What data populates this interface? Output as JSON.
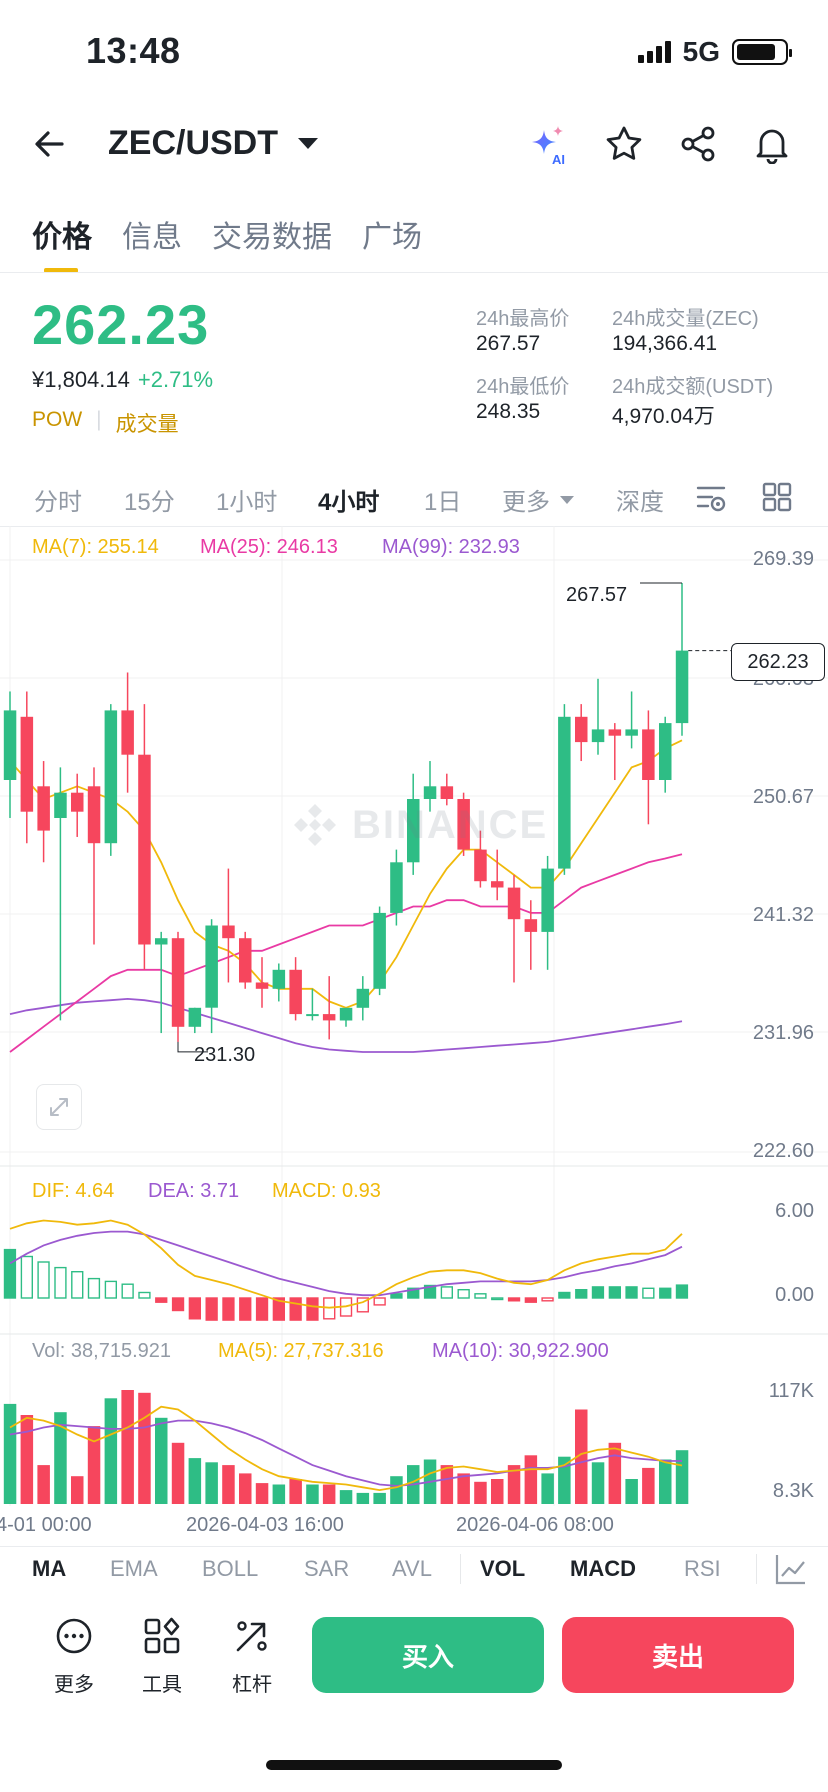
{
  "status_bar": {
    "time": "13:48",
    "network": "5G"
  },
  "header": {
    "pair": "ZEC/USDT"
  },
  "tabs": [
    {
      "label": "价格",
      "active": true
    },
    {
      "label": "信息",
      "active": false
    },
    {
      "label": "交易数据",
      "active": false
    },
    {
      "label": "广场",
      "active": false
    }
  ],
  "ticker": {
    "last_price": "262.23",
    "cny_price": "¥1,804.14",
    "change_pct": "+2.71%",
    "tag_pow": "POW",
    "tag_volume": "成交量",
    "high_label": "24h最高价",
    "high": "267.57",
    "low_label": "24h最低价",
    "low": "248.35",
    "vol_label": "24h成交量(ZEC)",
    "vol": "194,366.41",
    "turnover_label": "24h成交额(USDT)",
    "turnover": "4,970.04万"
  },
  "timeframes": [
    "分时",
    "15分",
    "1小时",
    "4小时",
    "1日",
    "更多",
    "深度"
  ],
  "active_timeframe": "4小时",
  "watermark": "BINANCE",
  "colors": {
    "up": "#2ebd85",
    "down": "#f6465d",
    "ma7": "#f0b90b",
    "ma25": "#e93aa4",
    "ma99": "#9b59d0",
    "accent": "#f0b90b"
  },
  "main_chart": {
    "ma7_label": "MA(7): 255.14",
    "ma25_label": "MA(25): 246.13",
    "ma99_label": "MA(99): 232.93",
    "axis_ticks": [
      "269.39",
      "260.03",
      "250.67",
      "241.32",
      "231.96",
      "222.60"
    ],
    "current_price_tag": "262.23",
    "high_marker": "267.57",
    "low_marker": "231.30"
  },
  "macd": {
    "dif_label": "DIF: 4.64",
    "dea_label": "DEA: 3.71",
    "macd_label": "MACD: 0.93",
    "axis_ticks": [
      "6.00",
      "0.00"
    ]
  },
  "volume": {
    "vol_label": "Vol: 38,715.921",
    "ma5_label": "MA(5): 27,737.316",
    "ma10_label": "MA(10): 30,922.900",
    "axis_ticks": [
      "117K",
      "8.3K"
    ]
  },
  "time_axis": [
    "4-01 00:00",
    "2026-04-03 16:00",
    "2026-04-06 08:00"
  ],
  "chart_data": {
    "type": "candlestick",
    "ylim": [
      222.6,
      269.39
    ],
    "candles": [
      {
        "o": 252.0,
        "h": 259.0,
        "l": 249.0,
        "c": 257.5
      },
      {
        "o": 257.0,
        "h": 259.0,
        "l": 247.0,
        "c": 249.5
      },
      {
        "o": 251.5,
        "h": 253.5,
        "l": 245.5,
        "c": 248.0
      },
      {
        "o": 249.0,
        "h": 253.0,
        "l": 233.0,
        "c": 251.0
      },
      {
        "o": 251.0,
        "h": 252.5,
        "l": 247.5,
        "c": 249.5
      },
      {
        "o": 251.5,
        "h": 253.0,
        "l": 239.0,
        "c": 247.0
      },
      {
        "o": 247.0,
        "h": 258.0,
        "l": 246.0,
        "c": 257.5
      },
      {
        "o": 257.5,
        "h": 260.5,
        "l": 251.0,
        "c": 254.0
      },
      {
        "o": 254.0,
        "h": 258.0,
        "l": 237.0,
        "c": 239.0
      },
      {
        "o": 239.0,
        "h": 240.0,
        "l": 232.0,
        "c": 239.5
      },
      {
        "o": 239.5,
        "h": 240.0,
        "l": 231.3,
        "c": 232.5
      },
      {
        "o": 232.5,
        "h": 234.0,
        "l": 232.0,
        "c": 234.0
      },
      {
        "o": 234.0,
        "h": 241.0,
        "l": 232.0,
        "c": 240.5
      },
      {
        "o": 240.5,
        "h": 245.0,
        "l": 236.0,
        "c": 239.5
      },
      {
        "o": 239.5,
        "h": 240.0,
        "l": 235.5,
        "c": 236.0
      },
      {
        "o": 236.0,
        "h": 238.0,
        "l": 234.0,
        "c": 235.5
      },
      {
        "o": 235.5,
        "h": 237.5,
        "l": 234.5,
        "c": 237.0
      },
      {
        "o": 237.0,
        "h": 238.0,
        "l": 233.0,
        "c": 233.5
      },
      {
        "o": 233.5,
        "h": 235.5,
        "l": 233.0,
        "c": 233.5
      },
      {
        "o": 233.5,
        "h": 236.5,
        "l": 231.5,
        "c": 233.0
      },
      {
        "o": 233.0,
        "h": 234.0,
        "l": 232.5,
        "c": 234.0
      },
      {
        "o": 234.0,
        "h": 236.5,
        "l": 233.0,
        "c": 235.5
      },
      {
        "o": 235.5,
        "h": 242.0,
        "l": 235.0,
        "c": 241.5
      },
      {
        "o": 241.5,
        "h": 246.5,
        "l": 240.5,
        "c": 245.5
      },
      {
        "o": 245.5,
        "h": 252.5,
        "l": 244.5,
        "c": 250.5
      },
      {
        "o": 250.5,
        "h": 253.5,
        "l": 249.5,
        "c": 251.5
      },
      {
        "o": 251.5,
        "h": 252.5,
        "l": 250.0,
        "c": 250.5
      },
      {
        "o": 250.5,
        "h": 251.0,
        "l": 246.0,
        "c": 246.5
      },
      {
        "o": 246.5,
        "h": 248.0,
        "l": 243.5,
        "c": 244.0
      },
      {
        "o": 244.0,
        "h": 246.5,
        "l": 242.5,
        "c": 243.5
      },
      {
        "o": 243.5,
        "h": 244.5,
        "l": 236.0,
        "c": 241.0
      },
      {
        "o": 241.0,
        "h": 242.5,
        "l": 237.0,
        "c": 240.0
      },
      {
        "o": 240.0,
        "h": 246.0,
        "l": 237.0,
        "c": 245.0
      },
      {
        "o": 245.0,
        "h": 258.0,
        "l": 244.5,
        "c": 257.0
      },
      {
        "o": 257.0,
        "h": 258.0,
        "l": 253.5,
        "c": 255.0
      },
      {
        "o": 255.0,
        "h": 260.0,
        "l": 254.0,
        "c": 256.0
      },
      {
        "o": 256.0,
        "h": 256.5,
        "l": 252.0,
        "c": 255.5
      },
      {
        "o": 255.5,
        "h": 259.0,
        "l": 254.5,
        "c": 256.0
      },
      {
        "o": 256.0,
        "h": 257.5,
        "l": 248.5,
        "c": 252.0
      },
      {
        "o": 252.0,
        "h": 257.0,
        "l": 251.0,
        "c": 256.5
      },
      {
        "o": 256.5,
        "h": 267.57,
        "l": 255.5,
        "c": 262.23
      }
    ],
    "ma7": [
      253.5,
      252.0,
      250.5,
      251.0,
      251.5,
      251.0,
      250.5,
      249.5,
      248.0,
      245.5,
      242.5,
      240.0,
      239.0,
      238.5,
      237.5,
      236.0,
      235.5,
      235.5,
      235.5,
      234.5,
      234.0,
      234.5,
      236.0,
      238.0,
      240.5,
      243.0,
      245.0,
      246.5,
      246.5,
      245.5,
      244.5,
      243.5,
      243.5,
      245.0,
      247.0,
      249.0,
      251.0,
      253.0,
      253.5,
      254.5,
      255.14
    ],
    "ma25": [
      230.5,
      231.5,
      232.5,
      233.5,
      234.5,
      235.5,
      236.5,
      237.0,
      237.0,
      237.0,
      236.5,
      237.0,
      237.5,
      238.0,
      238.5,
      238.5,
      239.0,
      239.5,
      240.0,
      240.5,
      240.5,
      240.5,
      241.0,
      241.5,
      242.0,
      242.0,
      242.5,
      242.5,
      242.0,
      242.0,
      242.0,
      241.5,
      241.5,
      242.5,
      243.5,
      244.0,
      244.5,
      245.0,
      245.5,
      245.8,
      246.13
    ],
    "ma99": [
      233.5,
      233.8,
      234.0,
      234.2,
      234.4,
      234.5,
      234.6,
      234.7,
      234.6,
      234.4,
      234.0,
      233.6,
      233.2,
      232.8,
      232.4,
      232.0,
      231.6,
      231.2,
      230.9,
      230.7,
      230.6,
      230.5,
      230.5,
      230.5,
      230.5,
      230.6,
      230.7,
      230.8,
      230.9,
      231.0,
      231.1,
      231.2,
      231.3,
      231.5,
      231.7,
      231.9,
      232.1,
      232.3,
      232.5,
      232.7,
      232.93
    ],
    "macd_hist": [
      3.5,
      3.0,
      2.6,
      2.2,
      1.9,
      1.4,
      1.2,
      1.0,
      0.4,
      -0.3,
      -0.9,
      -1.5,
      -1.6,
      -1.6,
      -1.6,
      -1.6,
      -1.6,
      -1.6,
      -1.6,
      -1.5,
      -1.3,
      -1.0,
      -0.5,
      0.3,
      0.7,
      0.9,
      0.8,
      0.6,
      0.3,
      0.0,
      -0.2,
      -0.3,
      -0.2,
      0.4,
      0.6,
      0.8,
      0.8,
      0.8,
      0.7,
      0.7,
      0.93
    ],
    "macd_dif": [
      5.0,
      5.4,
      5.6,
      5.5,
      5.3,
      5.4,
      5.6,
      5.3,
      4.6,
      3.6,
      2.4,
      1.6,
      1.3,
      1.0,
      0.6,
      0.2,
      -0.2,
      -0.4,
      -0.6,
      -0.7,
      -0.6,
      -0.3,
      0.3,
      1.0,
      1.5,
      1.9,
      2.0,
      2.0,
      1.8,
      1.4,
      1.1,
      1.0,
      1.3,
      2.0,
      2.5,
      2.8,
      3.0,
      3.2,
      3.2,
      3.5,
      4.64
    ],
    "macd_dea": [
      2.5,
      3.2,
      3.8,
      4.2,
      4.5,
      4.7,
      4.8,
      4.8,
      4.6,
      4.2,
      3.8,
      3.4,
      3.0,
      2.6,
      2.2,
      1.8,
      1.4,
      1.1,
      0.8,
      0.5,
      0.3,
      0.2,
      0.2,
      0.4,
      0.6,
      0.8,
      1.0,
      1.1,
      1.2,
      1.2,
      1.2,
      1.2,
      1.3,
      1.5,
      1.8,
      2.0,
      2.3,
      2.5,
      2.8,
      3.1,
      3.71
    ],
    "volume": [
      72,
      64,
      28,
      66,
      20,
      56,
      76,
      82,
      80,
      62,
      44,
      33,
      30,
      28,
      22,
      15,
      14,
      18,
      14,
      14,
      10,
      8,
      8,
      20,
      28,
      32,
      28,
      22,
      16,
      18,
      28,
      35,
      22,
      34,
      68,
      30,
      44,
      18,
      26,
      32,
      38.7
    ],
    "vol_ma5": [
      55,
      62,
      60,
      56,
      50,
      45,
      50,
      55,
      62,
      70,
      68,
      60,
      50,
      40,
      32,
      25,
      20,
      18,
      16,
      15,
      14,
      12,
      10,
      12,
      16,
      22,
      26,
      27,
      25,
      23,
      24,
      25,
      25,
      28,
      36,
      39,
      40,
      37,
      34,
      30,
      27.7
    ],
    "vol_ma10": [
      50,
      52,
      55,
      57,
      56,
      55,
      54,
      54,
      55,
      58,
      60,
      60,
      58,
      55,
      51,
      46,
      40,
      34,
      28,
      24,
      20,
      17,
      14,
      13,
      14,
      16,
      18,
      20,
      21,
      22,
      24,
      26,
      26,
      27,
      30,
      33,
      35,
      33,
      32,
      31,
      30.9
    ]
  },
  "indicators": [
    {
      "label": "MA",
      "on": true
    },
    {
      "label": "EMA",
      "on": false
    },
    {
      "label": "BOLL",
      "on": false
    },
    {
      "label": "SAR",
      "on": false
    },
    {
      "label": "AVL",
      "on": false
    },
    {
      "label": "VOL",
      "on": true
    },
    {
      "label": "MACD",
      "on": true
    },
    {
      "label": "RSI",
      "on": false
    }
  ],
  "actions": {
    "more": "更多",
    "tools": "工具",
    "leverage": "杠杆",
    "buy": "买入",
    "sell": "卖出"
  }
}
